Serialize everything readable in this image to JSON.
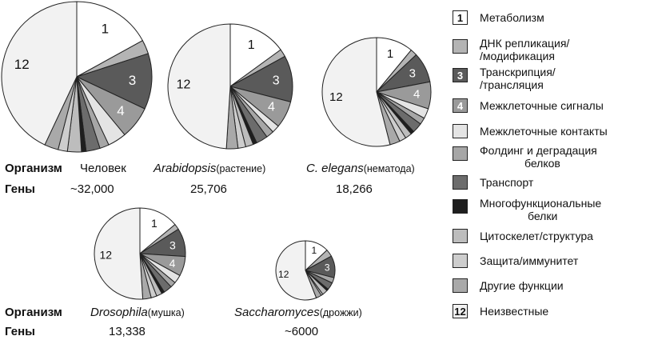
{
  "chart_data": {
    "type": "pie",
    "categories": [
      {
        "id": "1",
        "label": "Метаболизм",
        "color": "#ffffff",
        "text_color": "#111111"
      },
      {
        "id": "",
        "label": "ДНК репликация/ /модификация",
        "color": "#b4b4b4",
        "text_color": "#111111"
      },
      {
        "id": "3",
        "label": "Транскрипция/ /трансляция",
        "color": "#5a5a5a",
        "text_color": "#ffffff"
      },
      {
        "id": "4",
        "label": "Межклеточные сигналы",
        "color": "#9a9a9a",
        "text_color": "#ffffff"
      },
      {
        "id": "",
        "label": "Межклеточные контакты",
        "color": "#e4e4e4",
        "text_color": "#111111"
      },
      {
        "id": "",
        "label": "Фолдинг и деградация белков",
        "color": "#a6a6a6",
        "text_color": "#111111"
      },
      {
        "id": "",
        "label": "Транспорт",
        "color": "#6c6c6c",
        "text_color": "#111111"
      },
      {
        "id": "",
        "label": "Многофункциональные белки",
        "color": "#1e1e1e",
        "text_color": "#111111"
      },
      {
        "id": "",
        "label": "Цитоскелет/структура",
        "color": "#bdbdbd",
        "text_color": "#111111"
      },
      {
        "id": "",
        "label": "Защита/иммунитет",
        "color": "#cdcdcd",
        "text_color": "#111111"
      },
      {
        "id": "",
        "label": "Другие функции",
        "color": "#a9a9a9",
        "text_color": "#111111"
      },
      {
        "id": "12",
        "label": "Неизвестные",
        "color": "#f2f2f2",
        "text_color": "#111111"
      }
    ],
    "series": [
      {
        "organism": "Человек",
        "organism_italic": false,
        "note": "",
        "genes": "~32,000",
        "values": [
          17,
          3,
          12,
          7,
          4,
          2,
          3,
          1,
          3,
          2,
          3,
          43
        ]
      },
      {
        "organism": "Arabidopsis",
        "organism_italic": true,
        "note": "(растение)",
        "genes": "25,706",
        "values": [
          15,
          2,
          12,
          7,
          2,
          2,
          3,
          1,
          2,
          2,
          3,
          49
        ]
      },
      {
        "organism": "C. elegans",
        "organism_italic": true,
        "note": "(нематода)",
        "genes": "18,266",
        "values": [
          11,
          2,
          9,
          8,
          3,
          2,
          3,
          1,
          2,
          2,
          3,
          54
        ]
      },
      {
        "organism": "Drosophila",
        "organism_italic": true,
        "note": "(мушка)",
        "genes": "13,338",
        "values": [
          14,
          2,
          10,
          7,
          3,
          2,
          3,
          1,
          2,
          2,
          3,
          51
        ]
      },
      {
        "organism": "Saccharomyces",
        "organism_italic": true,
        "note": "(дрожжи)",
        "genes": "~6000",
        "values": [
          13,
          4,
          12,
          0,
          0,
          3,
          4,
          1,
          3,
          1,
          3,
          56
        ]
      }
    ],
    "row_labels": {
      "organism": "Организм",
      "genes": "Гены"
    }
  }
}
